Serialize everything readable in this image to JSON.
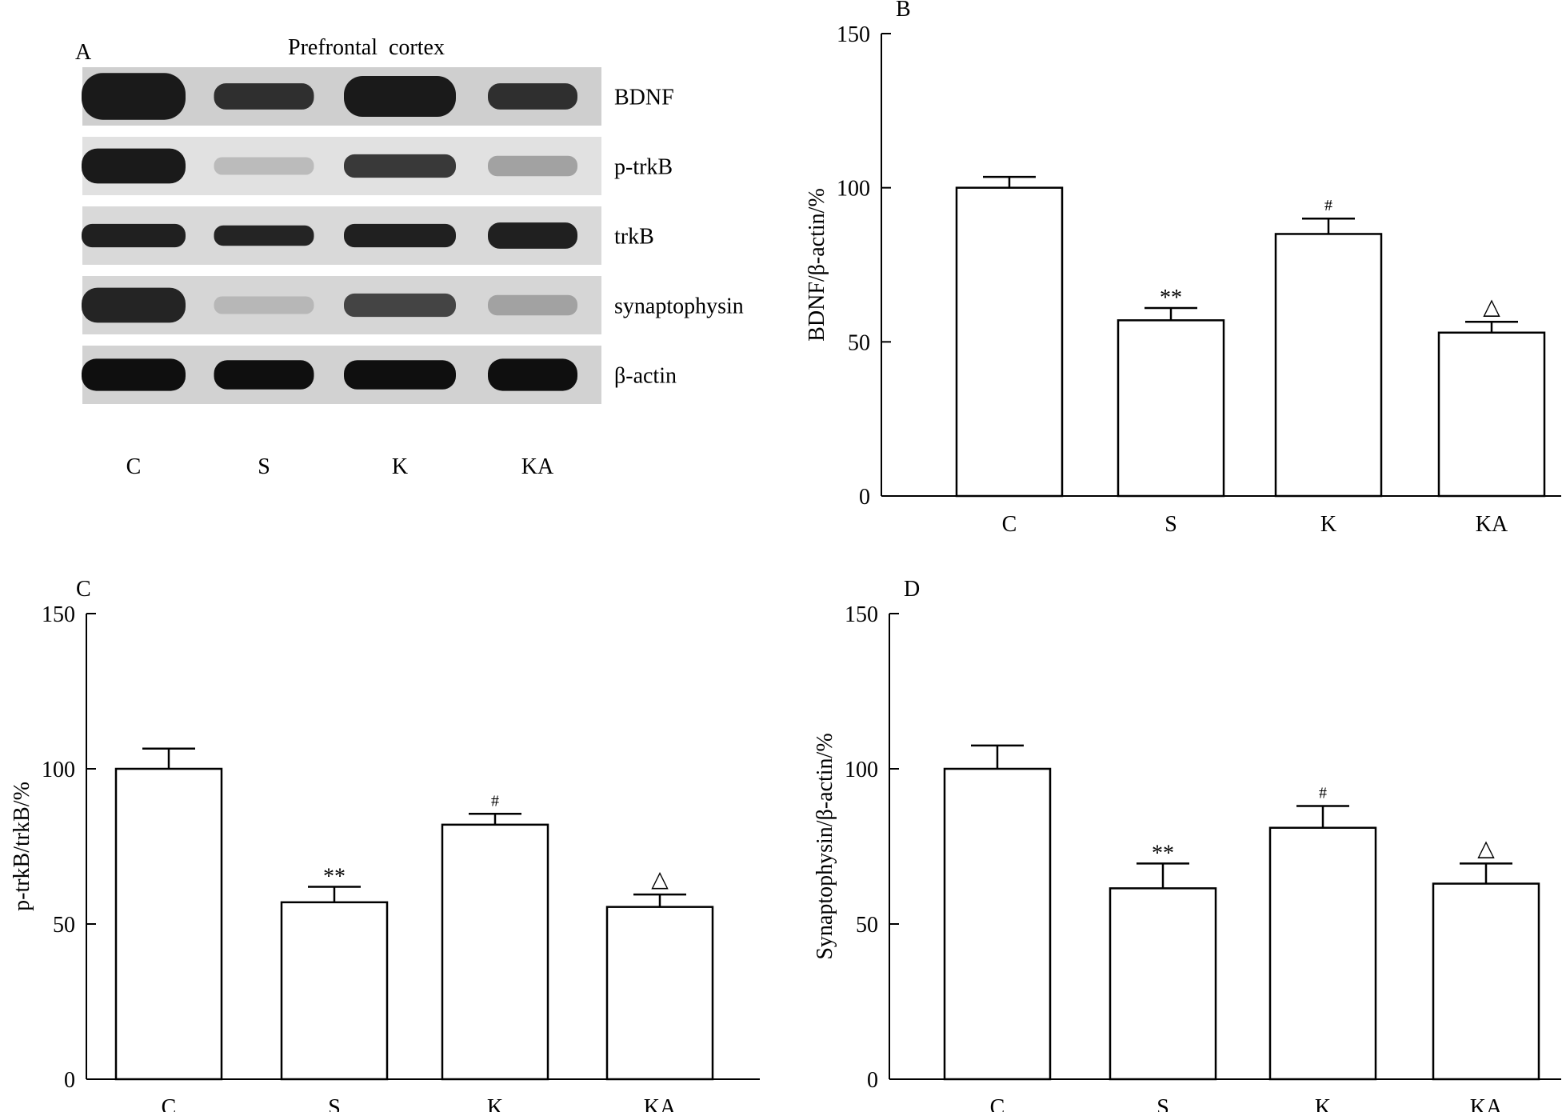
{
  "blot_panel": {
    "letter": "A",
    "title": "Prefrontal  cortex",
    "rows": [
      {
        "label": "BDNF",
        "intensities": [
          0.95,
          0.85,
          0.95,
          0.85
        ],
        "heights": [
          0.8,
          0.45,
          0.7,
          0.45
        ],
        "bg": "#cfcfcf"
      },
      {
        "label": "p-trkB",
        "intensities": [
          0.95,
          0.18,
          0.8,
          0.3
        ],
        "heights": [
          0.6,
          0.3,
          0.4,
          0.35
        ],
        "bg": "#e1e1e1"
      },
      {
        "label": "trkB",
        "intensities": [
          0.92,
          0.9,
          0.92,
          0.92
        ],
        "heights": [
          0.4,
          0.35,
          0.4,
          0.45
        ],
        "bg": "#d9d9d9"
      },
      {
        "label": "synaptophysin",
        "intensities": [
          0.9,
          0.2,
          0.75,
          0.3
        ],
        "heights": [
          0.6,
          0.3,
          0.4,
          0.35
        ],
        "bg": "#d6d6d6"
      },
      {
        "label": "β-actin",
        "intensities": [
          1.0,
          1.0,
          1.0,
          1.0
        ],
        "heights": [
          0.55,
          0.5,
          0.5,
          0.55
        ],
        "bg": "#d2d2d2"
      }
    ],
    "lanes": [
      "C",
      "S",
      "K",
      "KA"
    ]
  },
  "chart_data": [
    {
      "panel": "B",
      "type": "bar",
      "categories": [
        "C",
        "S",
        "K",
        "KA"
      ],
      "values": [
        100,
        57,
        85,
        53
      ],
      "errors": [
        3.5,
        4,
        5,
        3.5
      ],
      "annotations": [
        "",
        "**",
        "#",
        "△"
      ],
      "ylabel": "BDNF/β-actin/%",
      "xlabel": "",
      "ylim": [
        0,
        150
      ],
      "yticks": [
        0,
        50,
        100,
        150
      ],
      "grid": false
    },
    {
      "panel": "C",
      "type": "bar",
      "categories": [
        "C",
        "S",
        "K",
        "KA"
      ],
      "values": [
        100,
        57,
        82,
        55.5
      ],
      "errors": [
        6.5,
        5,
        3.5,
        4
      ],
      "annotations": [
        "",
        "**",
        "#",
        "△"
      ],
      "ylabel": "p-trkB/trkB/%",
      "xlabel": "",
      "ylim": [
        0,
        150
      ],
      "yticks": [
        0,
        50,
        100,
        150
      ],
      "grid": false
    },
    {
      "panel": "D",
      "type": "bar",
      "categories": [
        "C",
        "S",
        "K",
        "KA"
      ],
      "values": [
        100,
        61.5,
        81,
        63
      ],
      "errors": [
        7.5,
        8,
        7,
        6.5
      ],
      "annotations": [
        "",
        "**",
        "#",
        "△"
      ],
      "ylabel": "Synaptophysin/β-actin/%",
      "xlabel": "",
      "ylim": [
        0,
        150
      ],
      "yticks": [
        0,
        50,
        100,
        150
      ],
      "grid": false
    }
  ]
}
